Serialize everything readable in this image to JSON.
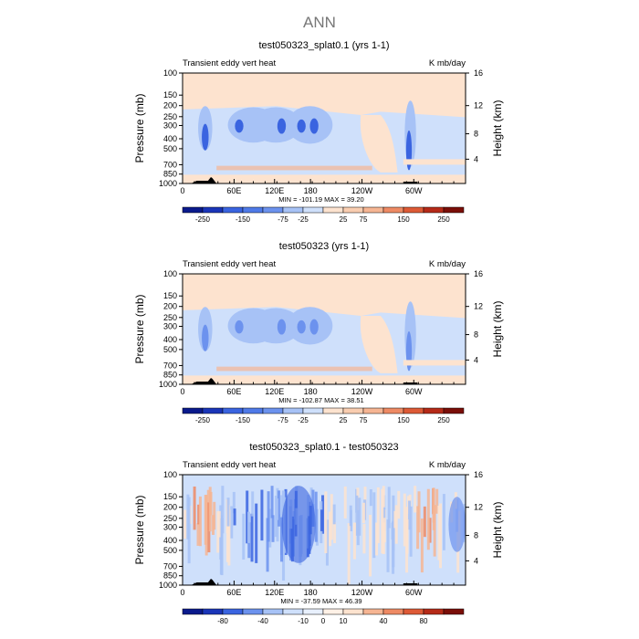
{
  "super_title": "ANN",
  "colors": {
    "deep_blue": "#0a1a8c",
    "mid_blue": "#3a64e0",
    "blue": "#6c92ee",
    "light_blue": "#a7c2f6",
    "pale_blue": "#cfe0fb",
    "pale_orange": "#fde3cf",
    "light_orange": "#f6b593",
    "orange": "#ee8a64",
    "red_orange": "#dd5a36",
    "dark_red": "#7a0e08",
    "topo_black": "#000000"
  },
  "chart_data": [
    {
      "type": "heatmap",
      "title": "test050323_splat0.1 (yrs 1-1)",
      "left_label": "Transient eddy vert heat",
      "right_label": "K mb/day",
      "ylabel": "Pressure (mb)",
      "y2label": "Height (km)",
      "x_ticks": [
        "0",
        "60E",
        "120E",
        "180",
        "120W",
        "60W"
      ],
      "y_ticks": [
        "100",
        "150",
        "200",
        "250",
        "300",
        "400",
        "500",
        "700",
        "850",
        "1000"
      ],
      "y2_ticks": [
        "16",
        "12",
        "8",
        "4"
      ],
      "stats": {
        "min_label": "MIN =",
        "min": "-101.19",
        "max_label": "MAX =",
        "max": "39.20"
      },
      "colorbar_labels": [
        "-250",
        "-150",
        "-75",
        "-25",
        "25",
        "75",
        "150",
        "250"
      ]
    },
    {
      "type": "heatmap",
      "title": "test050323 (yrs 1-1)",
      "left_label": "Transient eddy vert heat",
      "right_label": "K mb/day",
      "ylabel": "Pressure (mb)",
      "y2label": "Height (km)",
      "x_ticks": [
        "0",
        "60E",
        "120E",
        "180",
        "120W",
        "60W"
      ],
      "y_ticks": [
        "100",
        "150",
        "200",
        "250",
        "300",
        "400",
        "500",
        "700",
        "850",
        "1000"
      ],
      "y2_ticks": [
        "16",
        "12",
        "8",
        "4"
      ],
      "stats": {
        "min_label": "MIN =",
        "min": "-102.87",
        "max_label": "MAX =",
        "max": "38.51"
      },
      "colorbar_labels": [
        "-250",
        "-150",
        "-75",
        "-25",
        "25",
        "75",
        "150",
        "250"
      ]
    },
    {
      "type": "heatmap",
      "title": "test050323_splat0.1 - test050323",
      "left_label": "Transient eddy vert heat",
      "right_label": "K mb/day",
      "ylabel": "Pressure (mb)",
      "y2label": "Height (km)",
      "x_ticks": [
        "0",
        "60E",
        "120E",
        "180",
        "120W",
        "60W"
      ],
      "y_ticks": [
        "100",
        "150",
        "200",
        "250",
        "300",
        "400",
        "500",
        "700",
        "850",
        "1000"
      ],
      "y2_ticks": [
        "16",
        "12",
        "8",
        "4"
      ],
      "stats": {
        "min_label": "MIN =",
        "min": "-37.59",
        "max_label": "MAX =",
        "max": "46.39"
      },
      "colorbar_labels": [
        "-80",
        "-40",
        "-10",
        "0",
        "10",
        "40",
        "80"
      ]
    }
  ]
}
